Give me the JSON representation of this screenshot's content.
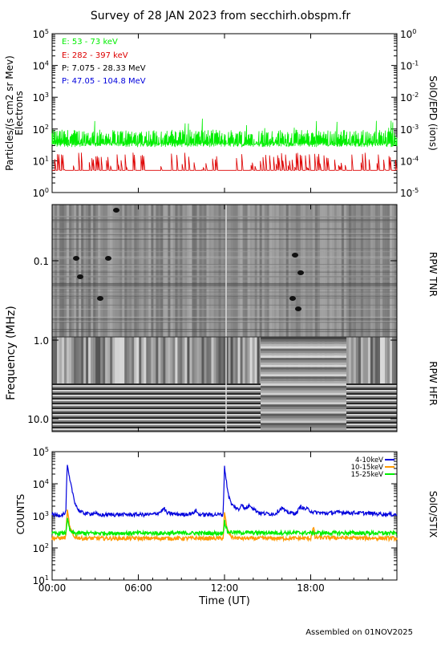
{
  "page": {
    "title": "Survey of 28 JAN 2023 from secchirh.obspm.fr",
    "footer": "Assembled on 01NOV2025",
    "colors": {
      "green": "#00ee00",
      "red": "#dd0000",
      "black": "#000000",
      "blue": "#0000dd",
      "orange": "#ff9900"
    }
  },
  "chart_data": [
    {
      "type": "line",
      "panel": "epd",
      "ylabel_left": "Particles/(s cm2 sr Mev)",
      "ylabel_left2": "Electrons",
      "ylabel_right": "SolO/EPD (ions)",
      "y_scale": "log",
      "ylim": [
        1,
        100000
      ],
      "y_ticks_left": [
        1,
        10,
        100,
        1000,
        10000,
        100000
      ],
      "y_tick_labels_left": [
        "10^0",
        "10^1",
        "10^2",
        "10^3",
        "10^4",
        "10^5"
      ],
      "y_tick_labels_right": [
        "10^-5",
        "10^-4",
        "10^-3",
        "10^-2",
        "10^-1",
        "10^0"
      ],
      "legend_placement": "top-left",
      "series": [
        {
          "name": "E: 53 - 73 keV",
          "color": "#00ee00",
          "baseline": 30,
          "peak": 150,
          "note_level": "noisy"
        },
        {
          "name": "E: 282 - 397 keV",
          "color": "#dd0000",
          "baseline": 5,
          "peak": 18,
          "note_level": "sparse"
        },
        {
          "name": "P: 7.075 - 28.33 MeV",
          "color": "#000000"
        },
        {
          "name": "P: 47.05 - 104.8 MeV",
          "color": "#0000dd"
        }
      ]
    },
    {
      "type": "heatmap",
      "panel": "rpw",
      "ylabel": "Frequency (MHz)",
      "y_scale": "log",
      "y_reversed": true,
      "y_tick_labels": [
        "0.1",
        "1.0",
        "10.0"
      ],
      "right_labels": [
        "RPW TNR",
        "RPW HFR"
      ]
    },
    {
      "type": "line",
      "panel": "stix",
      "ylabel": "COUNTS",
      "ylabel_right": "SolO/STIX",
      "y_scale": "log",
      "ylim": [
        10,
        100000
      ],
      "y_tick_labels": [
        "10^1",
        "10^2",
        "10^3",
        "10^4",
        "10^5"
      ],
      "xlabel": "Time (UT)",
      "x_ticks": [
        "00:00",
        "06:00",
        "12:00",
        "18:00"
      ],
      "xlim_hours": [
        0,
        24
      ],
      "legend_placement": "top-right",
      "series": [
        {
          "name": "4-10keV",
          "color": "#0000dd",
          "points": [
            [
              0,
              1100
            ],
            [
              0.5,
              1050
            ],
            [
              0.95,
              1200
            ],
            [
              1.05,
              38000
            ],
            [
              1.2,
              15000
            ],
            [
              1.4,
              6000
            ],
            [
              1.6,
              2500
            ],
            [
              1.8,
              1600
            ],
            [
              2.0,
              1300
            ],
            [
              2.5,
              1150
            ],
            [
              3.0,
              1250
            ],
            [
              3.2,
              1050
            ],
            [
              4,
              1100
            ],
            [
              5,
              1100
            ],
            [
              6,
              1100
            ],
            [
              7,
              1100
            ],
            [
              7.5,
              1300
            ],
            [
              7.8,
              1700
            ],
            [
              8.0,
              1200
            ],
            [
              9,
              1100
            ],
            [
              9.8,
              1200
            ],
            [
              10.0,
              1500
            ],
            [
              10.2,
              1100
            ],
            [
              11,
              1100
            ],
            [
              11.9,
              1100
            ],
            [
              12.0,
              35000
            ],
            [
              12.15,
              10000
            ],
            [
              12.3,
              4000
            ],
            [
              12.5,
              2200
            ],
            [
              12.8,
              1800
            ],
            [
              13.0,
              1500
            ],
            [
              13.2,
              2500
            ],
            [
              13.4,
              1600
            ],
            [
              13.8,
              2200
            ],
            [
              14.0,
              1700
            ],
            [
              14.5,
              1200
            ],
            [
              15.5,
              1150
            ],
            [
              16.0,
              1800
            ],
            [
              16.3,
              1300
            ],
            [
              17,
              1200
            ],
            [
              17.3,
              2000
            ],
            [
              17.5,
              1700
            ],
            [
              17.8,
              1600
            ],
            [
              18.2,
              1300
            ],
            [
              19,
              1200
            ],
            [
              20,
              1300
            ],
            [
              21,
              1250
            ],
            [
              22,
              1200
            ],
            [
              23,
              1150
            ],
            [
              24,
              1100
            ]
          ]
        },
        {
          "name": "10-15keV",
          "color": "#ff9900",
          "points": [
            [
              0,
              200
            ],
            [
              0.95,
              210
            ],
            [
              1.05,
              1500
            ],
            [
              1.25,
              400
            ],
            [
              1.5,
              230
            ],
            [
              2.0,
              200
            ],
            [
              6,
              200
            ],
            [
              11.9,
              200
            ],
            [
              12.0,
              1200
            ],
            [
              12.2,
              350
            ],
            [
              12.5,
              220
            ],
            [
              13,
              200
            ],
            [
              18,
              200
            ],
            [
              18.2,
              450
            ],
            [
              18.3,
              210
            ],
            [
              24,
              200
            ]
          ]
        },
        {
          "name": "15-25keV",
          "color": "#00ee00",
          "points": [
            [
              0,
              280
            ],
            [
              0.95,
              290
            ],
            [
              1.05,
              800
            ],
            [
              1.25,
              330
            ],
            [
              1.5,
              290
            ],
            [
              6,
              290
            ],
            [
              11.9,
              290
            ],
            [
              12.0,
              700
            ],
            [
              12.2,
              320
            ],
            [
              13,
              300
            ],
            [
              24,
              290
            ]
          ]
        }
      ]
    }
  ]
}
